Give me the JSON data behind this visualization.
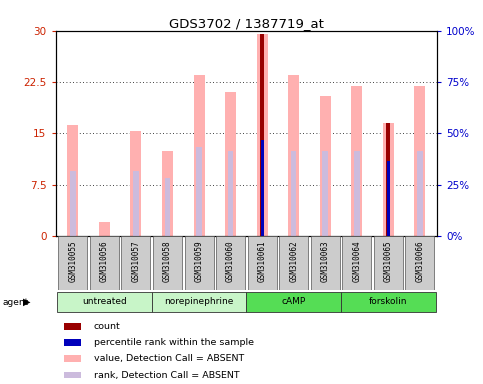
{
  "title": "GDS3702 / 1387719_at",
  "samples": [
    "GSM310055",
    "GSM310056",
    "GSM310057",
    "GSM310058",
    "GSM310059",
    "GSM310060",
    "GSM310061",
    "GSM310062",
    "GSM310063",
    "GSM310064",
    "GSM310065",
    "GSM310066"
  ],
  "value_bars": [
    16.3,
    2.0,
    15.4,
    12.5,
    23.5,
    21.0,
    29.5,
    23.5,
    20.5,
    22.0,
    16.5,
    22.0
  ],
  "rank_bars": [
    9.5,
    0.0,
    9.5,
    8.5,
    13.0,
    12.5,
    0.0,
    12.5,
    12.5,
    12.5,
    0.0,
    12.5
  ],
  "count_bars": [
    0.0,
    0.0,
    0.0,
    0.0,
    0.0,
    0.0,
    29.5,
    0.0,
    0.0,
    0.0,
    16.5,
    0.0
  ],
  "percentile_bars": [
    0.0,
    0.0,
    0.0,
    0.0,
    0.0,
    0.0,
    14.0,
    0.0,
    0.0,
    0.0,
    11.0,
    0.0
  ],
  "group_spans": [
    {
      "label": "untreated",
      "start": 0,
      "end": 3,
      "color": "#c8f5c8"
    },
    {
      "label": "norepinephrine",
      "start": 3,
      "end": 6,
      "color": "#c8f5c8"
    },
    {
      "label": "cAMP",
      "start": 6,
      "end": 9,
      "color": "#55dd55"
    },
    {
      "label": "forskolin",
      "start": 9,
      "end": 12,
      "color": "#55dd55"
    }
  ],
  "ylim_left": [
    0,
    30
  ],
  "ylim_right": [
    0,
    100
  ],
  "yticks_left": [
    0,
    7.5,
    15,
    22.5,
    30
  ],
  "yticks_right": [
    0,
    25,
    50,
    75,
    100
  ],
  "ytick_labels_left": [
    "0",
    "7.5",
    "15",
    "22.5",
    "30"
  ],
  "ytick_labels_right": [
    "0%",
    "25%",
    "50%",
    "75%",
    "100%"
  ],
  "color_value": "#ffb0b0",
  "color_rank": "#ccbbdd",
  "color_count": "#990000",
  "color_percentile": "#0000bb",
  "value_bar_width": 0.35,
  "rank_bar_width": 0.18,
  "count_bar_width": 0.14,
  "percentile_bar_width": 0.09,
  "legend_items": [
    {
      "label": "count",
      "color": "#990000"
    },
    {
      "label": "percentile rank within the sample",
      "color": "#0000bb"
    },
    {
      "label": "value, Detection Call = ABSENT",
      "color": "#ffb0b0"
    },
    {
      "label": "rank, Detection Call = ABSENT",
      "color": "#ccbbdd"
    }
  ]
}
